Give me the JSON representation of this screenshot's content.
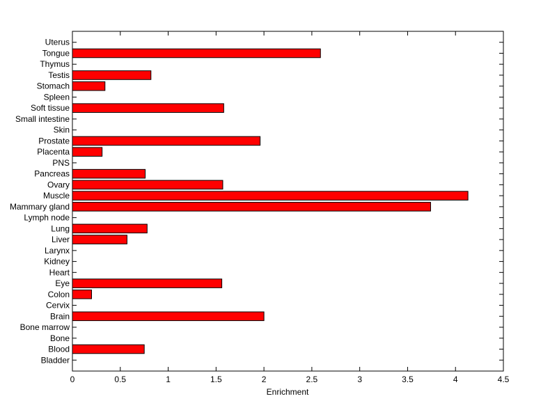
{
  "chart_data": {
    "type": "barh",
    "categories": [
      "Bladder",
      "Blood",
      "Bone",
      "Bone marrow",
      "Brain",
      "Cervix",
      "Colon",
      "Eye",
      "Heart",
      "Kidney",
      "Larynx",
      "Liver",
      "Lung",
      "Lymph node",
      "Mammary gland",
      "Muscle",
      "Ovary",
      "Pancreas",
      "PNS",
      "Placenta",
      "Prostate",
      "Skin",
      "Small intestine",
      "Soft tissue",
      "Spleen",
      "Stomach",
      "Testis",
      "Thymus",
      "Tongue",
      "Uterus"
    ],
    "values": [
      0,
      0.75,
      0,
      0,
      2.0,
      0,
      0.2,
      1.56,
      0,
      0,
      0,
      0.57,
      0.78,
      0,
      3.74,
      4.13,
      1.57,
      0.76,
      0,
      0.31,
      1.96,
      0,
      0,
      1.58,
      0,
      0.34,
      0.82,
      0,
      2.59,
      0
    ],
    "color": "#ff0000",
    "xlabel": "Enrichment",
    "xlim": [
      0,
      4.5
    ],
    "xticks": [
      0,
      0.5,
      1,
      1.5,
      2,
      2.5,
      3,
      3.5,
      4,
      4.5
    ]
  }
}
